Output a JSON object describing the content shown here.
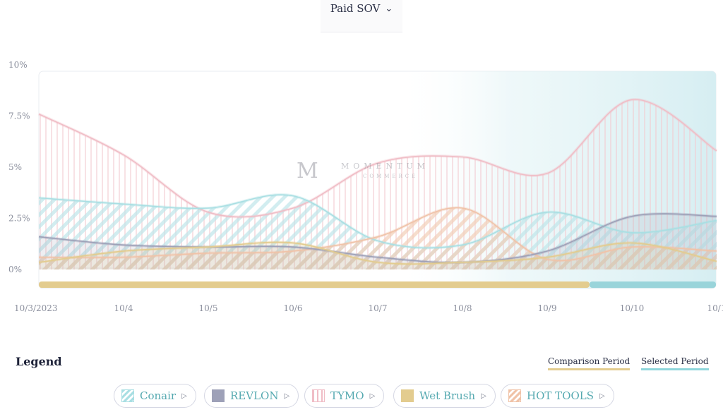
{
  "header": {
    "metric_label": "Paid SOV",
    "chevron_icon": "chevron-down-icon"
  },
  "watermark": {
    "brand": "MOMENTUM",
    "sub": "COMMERCE",
    "mark": "M"
  },
  "legend": {
    "title": "Legend",
    "comparison_label": "Comparison Period",
    "selected_label": "Selected Period",
    "comparison_color": "#e3cc8f",
    "selected_color": "#8fd6dc"
  },
  "chips": [
    {
      "label": "Conair",
      "color": "#a9dfe3",
      "icon": "diagonal-hatch-swatch"
    },
    {
      "label": "REVLON",
      "color": "#9ea1b8",
      "icon": "solid-swatch"
    },
    {
      "label": "TYMO",
      "color": "#f0bdc6",
      "icon": "vertical-hatch-swatch"
    },
    {
      "label": "Wet Brush",
      "color": "#e3cc8f",
      "icon": "solid-swatch"
    },
    {
      "label": "HOT TOOLS",
      "color": "#f0c3a8",
      "icon": "diagonal-hatch-swatch"
    }
  ],
  "chart_data": {
    "type": "area",
    "x": [
      "10/3/2023",
      "10/4",
      "10/5",
      "10/6",
      "10/7",
      "10/8",
      "10/9",
      "10/10",
      "10/1"
    ],
    "y_ticks": [
      "10%",
      "7.5%",
      "5%",
      "2.5%",
      "0%"
    ],
    "ylim": [
      0,
      10
    ],
    "grid": false,
    "series": [
      {
        "name": "Conair",
        "color": "#a9dfe3",
        "values": [
          3.5,
          3.2,
          3.0,
          3.6,
          1.4,
          1.2,
          2.8,
          1.8,
          2.4
        ]
      },
      {
        "name": "REVLON",
        "color": "#9ea1b8",
        "values": [
          1.6,
          1.2,
          1.1,
          1.1,
          0.6,
          0.35,
          0.9,
          2.6,
          2.6
        ]
      },
      {
        "name": "TYMO",
        "color": "#f0bdc6",
        "values": [
          7.6,
          5.6,
          2.8,
          3.0,
          5.2,
          5.5,
          4.7,
          8.3,
          5.8
        ]
      },
      {
        "name": "Wet Brush",
        "color": "#e3cc8f",
        "values": [
          0.35,
          0.9,
          1.1,
          1.3,
          0.35,
          0.35,
          0.6,
          1.3,
          0.4
        ]
      },
      {
        "name": "HOT TOOLS",
        "color": "#f0c3a8",
        "values": [
          0.6,
          0.6,
          0.8,
          0.9,
          1.6,
          3.0,
          0.5,
          1.1,
          0.9
        ]
      }
    ],
    "periods": {
      "comparison": {
        "label": "Comparison Period",
        "from": "10/3/2023",
        "to": "10/9"
      },
      "selected": {
        "label": "Selected Period",
        "from": "10/9",
        "to": "10/1"
      }
    },
    "legend_position": "bottom"
  }
}
